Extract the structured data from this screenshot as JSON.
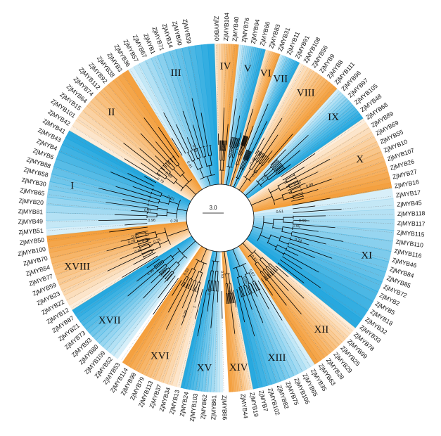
{
  "colors": {
    "blue": "#1aa3dd",
    "orange": "#f39a33",
    "branch": "#000000",
    "background": "#ffffff"
  },
  "scale_bar": "3.0",
  "clades": [
    {
      "id": "III",
      "label": "III",
      "color": "blue",
      "start_deg": -32.0,
      "end_deg": -2.0
    },
    {
      "id": "IV",
      "label": "IV",
      "color": "orange",
      "start_deg": -2.0,
      "end_deg": 6.0
    },
    {
      "id": "V",
      "label": "V",
      "color": "blue",
      "start_deg": 6.0,
      "end_deg": 15.0
    },
    {
      "id": "VI",
      "label": "VI",
      "color": "orange",
      "start_deg": 15.0,
      "end_deg": 20.0
    },
    {
      "id": "VII",
      "label": "VII",
      "color": "blue",
      "start_deg": 20.0,
      "end_deg": 27.0
    },
    {
      "id": "VIII",
      "label": "VIII",
      "color": "orange",
      "start_deg": 27.0,
      "end_deg": 42.0
    },
    {
      "id": "IX",
      "label": "IX",
      "color": "blue",
      "start_deg": 42.0,
      "end_deg": 55.0
    },
    {
      "id": "X",
      "label": "X",
      "color": "orange",
      "start_deg": 55.0,
      "end_deg": 80.0
    },
    {
      "id": "XI",
      "label": "XI",
      "color": "blue",
      "start_deg": 80.0,
      "end_deg": 129.0
    },
    {
      "id": "XII",
      "label": "XII",
      "color": "orange",
      "start_deg": 129.0,
      "end_deg": 147.0
    },
    {
      "id": "XIII",
      "label": "XIII",
      "color": "blue",
      "start_deg": 147.0,
      "end_deg": 169.0
    },
    {
      "id": "XIV",
      "label": "XIV",
      "color": "orange",
      "start_deg": 169.0,
      "end_deg": 177.0
    },
    {
      "id": "XV",
      "label": "XV",
      "color": "blue",
      "start_deg": 179.0,
      "end_deg": 193.0
    },
    {
      "id": "XVI",
      "label": "XVI",
      "color": "orange",
      "start_deg": 193.0,
      "end_deg": 214.0
    },
    {
      "id": "XVII",
      "label": "XVII",
      "color": "blue",
      "start_deg": 216.0,
      "end_deg": 238.0
    },
    {
      "id": "XVIII",
      "label": "XVIII",
      "color": "orange",
      "start_deg": 238.0,
      "end_deg": 264.0
    },
    {
      "id": "I",
      "label": "I",
      "color": "blue",
      "start_deg": 264.0,
      "end_deg": 300.0
    },
    {
      "id": "II",
      "label": "II",
      "color": "orange",
      "start_deg": 300.0,
      "end_deg": 328.0
    }
  ],
  "leaves": [
    {
      "name": "ZjMYB60",
      "deg": -1.2
    },
    {
      "name": "ZjMYB104",
      "deg": 2.0
    },
    {
      "name": "ZjMYB40",
      "deg": 4.8
    },
    {
      "name": "ZjMYB76",
      "deg": 7.8
    },
    {
      "name": "ZjMYB94",
      "deg": 10.8
    },
    {
      "name": "ZjMYB66",
      "deg": 13.8
    },
    {
      "name": "ZjMYB83",
      "deg": 16.8
    },
    {
      "name": "ZjMYB31",
      "deg": 19.8
    },
    {
      "name": "ZjMYB11",
      "deg": 22.8
    },
    {
      "name": "ZjMYB91",
      "deg": 25.8
    },
    {
      "name": "ZjMYB108",
      "deg": 28.8
    },
    {
      "name": "ZjMYB56",
      "deg": 31.8
    },
    {
      "name": "ZjMYB9",
      "deg": 34.8
    },
    {
      "name": "ZjMYB8",
      "deg": 37.8
    },
    {
      "name": "ZjMYB111",
      "deg": 40.8
    },
    {
      "name": "ZjMYB96",
      "deg": 43.8
    },
    {
      "name": "ZjMYB97",
      "deg": 46.8
    },
    {
      "name": "ZjMYB105",
      "deg": 49.8
    },
    {
      "name": "ZjMYB48",
      "deg": 52.8
    },
    {
      "name": "ZjMYB68",
      "deg": 55.8
    },
    {
      "name": "ZjMYB89",
      "deg": 58.8
    },
    {
      "name": "ZjMYB69",
      "deg": 61.8
    },
    {
      "name": "ZjMYB55",
      "deg": 64.8
    },
    {
      "name": "ZjMYB10",
      "deg": 67.8
    },
    {
      "name": "ZjMYB107",
      "deg": 70.8
    },
    {
      "name": "ZjMYB26",
      "deg": 73.8
    },
    {
      "name": "ZjMYB27",
      "deg": 76.8
    },
    {
      "name": "ZjMYB16",
      "deg": 79.8
    },
    {
      "name": "ZjMYB17",
      "deg": 82.8
    },
    {
      "name": "ZjMYB45",
      "deg": 85.8
    },
    {
      "name": "ZjMYB118",
      "deg": 88.8
    },
    {
      "name": "ZjMYB117",
      "deg": 91.8
    },
    {
      "name": "ZjMYB115",
      "deg": 94.8
    },
    {
      "name": "ZjMYB110",
      "deg": 97.8
    },
    {
      "name": "ZjMYB116",
      "deg": 100.8
    },
    {
      "name": "ZjMYB46",
      "deg": 103.8
    },
    {
      "name": "ZjMYB84",
      "deg": 106.8
    },
    {
      "name": "ZjMYB85",
      "deg": 109.8
    },
    {
      "name": "ZjMYB72",
      "deg": 112.8
    },
    {
      "name": "ZjMYB2",
      "deg": 115.8
    },
    {
      "name": "ZjMYB5",
      "deg": 118.8
    },
    {
      "name": "ZjMYB18",
      "deg": 121.8
    },
    {
      "name": "ZjMYB32",
      "deg": 124.8
    },
    {
      "name": "ZjMYB33",
      "deg": 127.8
    },
    {
      "name": "ZjMYB78",
      "deg": 130.8
    },
    {
      "name": "ZjMYB99",
      "deg": 133.8
    },
    {
      "name": "ZjMYB25",
      "deg": 136.8
    },
    {
      "name": "ZjMYB29",
      "deg": 139.8
    },
    {
      "name": "ZjMYB28",
      "deg": 142.8
    },
    {
      "name": "ZjMYB63",
      "deg": 145.8
    },
    {
      "name": "ZjMYB35",
      "deg": 148.8
    },
    {
      "name": "ZjMYB65",
      "deg": 151.8
    },
    {
      "name": "ZjMYB106",
      "deg": 154.8
    },
    {
      "name": "ZjMYB75",
      "deg": 157.8
    },
    {
      "name": "ZjMYB82",
      "deg": 160.8
    },
    {
      "name": "ZjMYB102",
      "deg": 163.8
    },
    {
      "name": "ZjMYB7",
      "deg": 166.8
    },
    {
      "name": "ZjMYB19",
      "deg": 169.8
    },
    {
      "name": "ZjMYB44",
      "deg": 172.8
    },
    {
      "name": "ZjMYB86",
      "deg": 178.8
    },
    {
      "name": "ZjMYB61",
      "deg": 181.8
    },
    {
      "name": "ZjMYB62",
      "deg": 184.8
    },
    {
      "name": "ZjMYB103",
      "deg": 187.8
    },
    {
      "name": "ZjMYB24",
      "deg": 190.8
    },
    {
      "name": "ZjMYB13",
      "deg": 193.8
    },
    {
      "name": "ZjMYB34",
      "deg": 196.8
    },
    {
      "name": "ZjMYB37",
      "deg": 199.8
    },
    {
      "name": "ZjMYB113",
      "deg": 202.8
    },
    {
      "name": "ZjMYB79",
      "deg": 205.8
    },
    {
      "name": "ZjMYB98",
      "deg": 208.8
    },
    {
      "name": "ZjMYB114",
      "deg": 211.8
    },
    {
      "name": "ZjMYB53",
      "deg": 214.8
    },
    {
      "name": "ZjMYB52",
      "deg": 217.8
    },
    {
      "name": "ZjMYB109",
      "deg": 220.8
    },
    {
      "name": "ZjMYB80",
      "deg": 223.8
    },
    {
      "name": "ZjMYB93",
      "deg": 226.8
    },
    {
      "name": "ZjMYB73",
      "deg": 229.8
    },
    {
      "name": "ZjMYB21",
      "deg": 232.8
    },
    {
      "name": "ZjMYB87",
      "deg": 235.8
    },
    {
      "name": "ZjMYB12",
      "deg": 238.8
    },
    {
      "name": "ZjMYB22",
      "deg": 241.8
    },
    {
      "name": "ZjMYB23",
      "deg": 244.8
    },
    {
      "name": "ZjMYB59",
      "deg": 247.8
    },
    {
      "name": "ZjMYB77",
      "deg": 250.8
    },
    {
      "name": "ZjMYB54",
      "deg": 253.8
    },
    {
      "name": "ZjMYB70",
      "deg": 256.8
    },
    {
      "name": "ZjMYB100",
      "deg": 259.8
    },
    {
      "name": "ZjMYB50",
      "deg": 262.8
    },
    {
      "name": "ZjMYB51",
      "deg": 265.8
    },
    {
      "name": "ZjMYB49",
      "deg": 268.8
    },
    {
      "name": "ZjMYB81",
      "deg": 271.8
    },
    {
      "name": "ZjMYB20",
      "deg": 274.8
    },
    {
      "name": "ZjMYB65",
      "deg": 277.8
    },
    {
      "name": "ZjMYB30",
      "deg": 280.8
    },
    {
      "name": "ZjMYB58",
      "deg": 283.8
    },
    {
      "name": "ZjMYB88",
      "deg": 286.8
    },
    {
      "name": "ZjMYB6",
      "deg": 289.8
    },
    {
      "name": "ZjMYB4",
      "deg": 292.8
    },
    {
      "name": "ZjMYB43",
      "deg": 295.8
    },
    {
      "name": "ZjMYB41",
      "deg": 298.8
    },
    {
      "name": "ZjMYB42",
      "deg": 301.8
    },
    {
      "name": "ZjMYB101",
      "deg": 304.8
    },
    {
      "name": "ZjMYB15",
      "deg": 307.8
    },
    {
      "name": "ZjMYB64",
      "deg": 310.8
    },
    {
      "name": "ZjMYB74",
      "deg": 313.8
    },
    {
      "name": "ZjMYB112",
      "deg": 316.8
    },
    {
      "name": "ZjMYB92",
      "deg": 319.8
    },
    {
      "name": "ZjMYB38",
      "deg": 322.8
    },
    {
      "name": "ZjMYB3",
      "deg": 325.8
    },
    {
      "name": "ZjMYB36",
      "deg": 328.8
    },
    {
      "name": "ZjMYB57",
      "deg": 331.8
    },
    {
      "name": "ZjMYB67",
      "deg": 334.8
    },
    {
      "name": "ZjMYB1",
      "deg": 337.8
    },
    {
      "name": "ZjMYB71",
      "deg": 340.8
    },
    {
      "name": "ZjMYB14",
      "deg": 343.8
    },
    {
      "name": "ZjMYB90",
      "deg": 346.8
    },
    {
      "name": "ZjMYB39",
      "deg": 349.8
    }
  ],
  "bootstrap": [
    {
      "v": "0.46",
      "deg": 3,
      "r": 95
    },
    {
      "v": "0.33",
      "deg": 10,
      "r": 90
    },
    {
      "v": "0.96",
      "deg": 14,
      "r": 100
    },
    {
      "v": "0.48",
      "deg": 30,
      "r": 88
    },
    {
      "v": "0.59",
      "deg": 38,
      "r": 75
    },
    {
      "v": "0.52",
      "deg": 48,
      "r": 80
    },
    {
      "v": "0.94",
      "deg": 66,
      "r": 115
    },
    {
      "v": "0.99",
      "deg": 70,
      "r": 130
    },
    {
      "v": "0.51",
      "deg": 84,
      "r": 80
    },
    {
      "v": "0.99",
      "deg": 92,
      "r": 112
    },
    {
      "v": "0.65",
      "deg": 96,
      "r": 104
    },
    {
      "v": "0.74",
      "deg": 106,
      "r": 110
    },
    {
      "v": "0.61",
      "deg": 140,
      "r": 70
    },
    {
      "v": "0.67",
      "deg": 150,
      "r": 85
    },
    {
      "v": "0.99",
      "deg": 158,
      "r": 90
    },
    {
      "v": "0.53",
      "deg": 178,
      "r": 75
    },
    {
      "v": "0.99",
      "deg": 188,
      "r": 100
    },
    {
      "v": "1",
      "deg": 196,
      "r": 130
    },
    {
      "v": "0.99",
      "deg": 200,
      "r": 140
    },
    {
      "v": "0.53",
      "deg": 212,
      "r": 85
    },
    {
      "v": "0.99",
      "deg": 226,
      "r": 108
    },
    {
      "v": "0.96",
      "deg": 232,
      "r": 120
    },
    {
      "v": "0.75",
      "deg": 250,
      "r": 90
    },
    {
      "v": "0.99",
      "deg": 253,
      "r": 105
    },
    {
      "v": "0.81",
      "deg": 258,
      "r": 118
    },
    {
      "v": "0.78",
      "deg": 255,
      "r": 125
    },
    {
      "v": "0.86",
      "deg": 248,
      "r": 120
    },
    {
      "v": "0.96",
      "deg": 268,
      "r": 92
    },
    {
      "v": "0.67",
      "deg": 276,
      "r": 98
    },
    {
      "v": "0.28",
      "deg": 266,
      "r": 60
    },
    {
      "v": "0.31",
      "deg": 292,
      "r": 70
    },
    {
      "v": "0.79",
      "deg": 302,
      "r": 95
    },
    {
      "v": "0.98",
      "deg": 310,
      "r": 90
    },
    {
      "v": "0.91",
      "deg": 330,
      "r": 82
    },
    {
      "v": "0.99",
      "deg": 340,
      "r": 100
    }
  ]
}
